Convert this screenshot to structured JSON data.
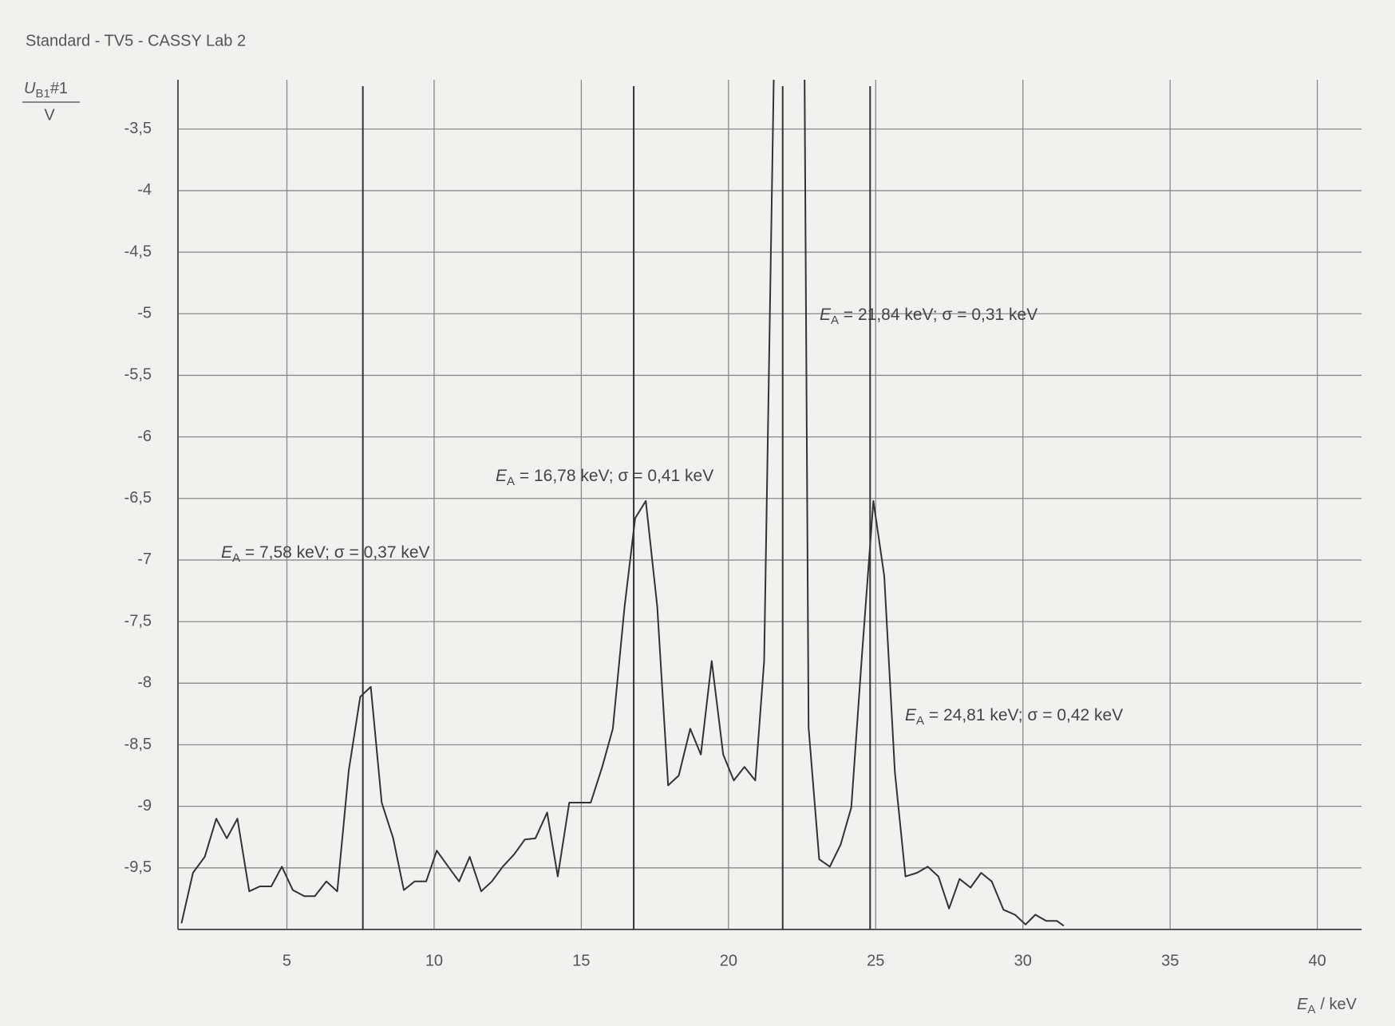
{
  "chart_data": {
    "type": "line",
    "title": "Standard - TV5 - CASSY Lab 2",
    "ylabel": {
      "symbol": "U",
      "subscript": "B1",
      "suffix": "#1",
      "unit": "V"
    },
    "xlabel": {
      "symbol": "E",
      "subscript": "A",
      "unit": "/ keV"
    },
    "xlim": [
      1.3,
      41.5
    ],
    "ylim": [
      -10,
      -3.1
    ],
    "xticks": [
      5,
      10,
      15,
      20,
      25,
      30,
      35,
      40
    ],
    "yticks": [
      {
        "value": -3.5,
        "label": "-3,5"
      },
      -4,
      {
        "value": -4.5,
        "label": "-4,5"
      },
      -5,
      {
        "value": -5.5,
        "label": "-5,5"
      },
      -6,
      {
        "value": -6.5,
        "label": "-6,5"
      },
      -7,
      {
        "value": -7.5,
        "label": "-7,5"
      },
      -8,
      {
        "value": -8.5,
        "label": "-8,5"
      },
      -9,
      {
        "value": -9.5,
        "label": "-9,5"
      }
    ],
    "grid": true,
    "color": "#333333",
    "x": [
      1.42,
      1.81,
      2.21,
      2.6,
      2.96,
      3.32,
      3.72,
      4.08,
      4.47,
      4.83,
      5.2,
      5.59,
      5.95,
      6.34,
      6.71,
      7.1,
      7.49,
      7.85,
      8.22,
      8.61,
      8.97,
      9.34,
      9.73,
      10.09,
      10.48,
      10.85,
      11.21,
      11.6,
      11.96,
      12.33,
      12.72,
      13.08,
      13.44,
      13.84,
      14.2,
      14.59,
      14.95,
      15.32,
      15.71,
      16.07,
      16.47,
      16.83,
      17.19,
      17.58,
      17.95,
      18.31,
      18.7,
      19.06,
      19.43,
      19.82,
      20.18,
      20.54,
      20.91,
      21.21,
      21.57,
      22.57,
      22.72,
      23.08,
      23.44,
      23.81,
      24.17,
      24.53,
      24.92,
      25.29,
      25.65,
      26.01,
      26.4,
      26.77,
      27.13,
      27.49,
      27.85,
      28.22,
      28.58,
      28.94,
      29.34,
      29.73,
      30.09,
      30.42,
      30.79,
      31.15,
      31.39
    ],
    "values": [
      -9.95,
      -9.54,
      -9.41,
      -9.1,
      -9.26,
      -9.1,
      -9.69,
      -9.65,
      -9.65,
      -9.49,
      -9.68,
      -9.73,
      -9.73,
      -9.61,
      -9.69,
      -8.71,
      -8.11,
      -8.03,
      -8.97,
      -9.26,
      -9.68,
      -9.61,
      -9.61,
      -9.36,
      -9.49,
      -9.61,
      -9.41,
      -9.69,
      -9.61,
      -9.49,
      -9.39,
      -9.27,
      -9.26,
      -9.05,
      -9.57,
      -8.97,
      -8.97,
      -8.97,
      -8.68,
      -8.37,
      -7.38,
      -6.66,
      -6.52,
      -7.38,
      -8.83,
      -8.75,
      -8.37,
      -8.58,
      -7.82,
      -8.58,
      -8.79,
      -8.68,
      -8.79,
      -7.82,
      -2.6,
      -2.6,
      -8.36,
      -9.43,
      -9.49,
      -9.31,
      -9.01,
      -7.78,
      -6.52,
      -7.13,
      -8.72,
      -9.57,
      -9.54,
      -9.49,
      -9.57,
      -9.83,
      -9.59,
      -9.66,
      -9.54,
      -9.61,
      -9.84,
      -9.88,
      -9.96,
      -9.88,
      -9.93,
      -9.93,
      -9.97
    ],
    "annotations": [
      {
        "x": 7.58,
        "symbol": "E",
        "subscript": "A",
        "text": " =  7,58 keV;   σ =  0,37 keV"
      },
      {
        "x": 16.78,
        "symbol": "E",
        "subscript": "A",
        "text": " =  16,78 keV;   σ =  0,41 keV"
      },
      {
        "x": 21.84,
        "symbol": "E",
        "subscript": "A",
        "text": " =  21,84 keV;   σ =  0,31 keV"
      },
      {
        "x": 24.81,
        "symbol": "E",
        "subscript": "A",
        "text": " =  24,81 keV;   σ =  0,42 keV"
      }
    ]
  }
}
